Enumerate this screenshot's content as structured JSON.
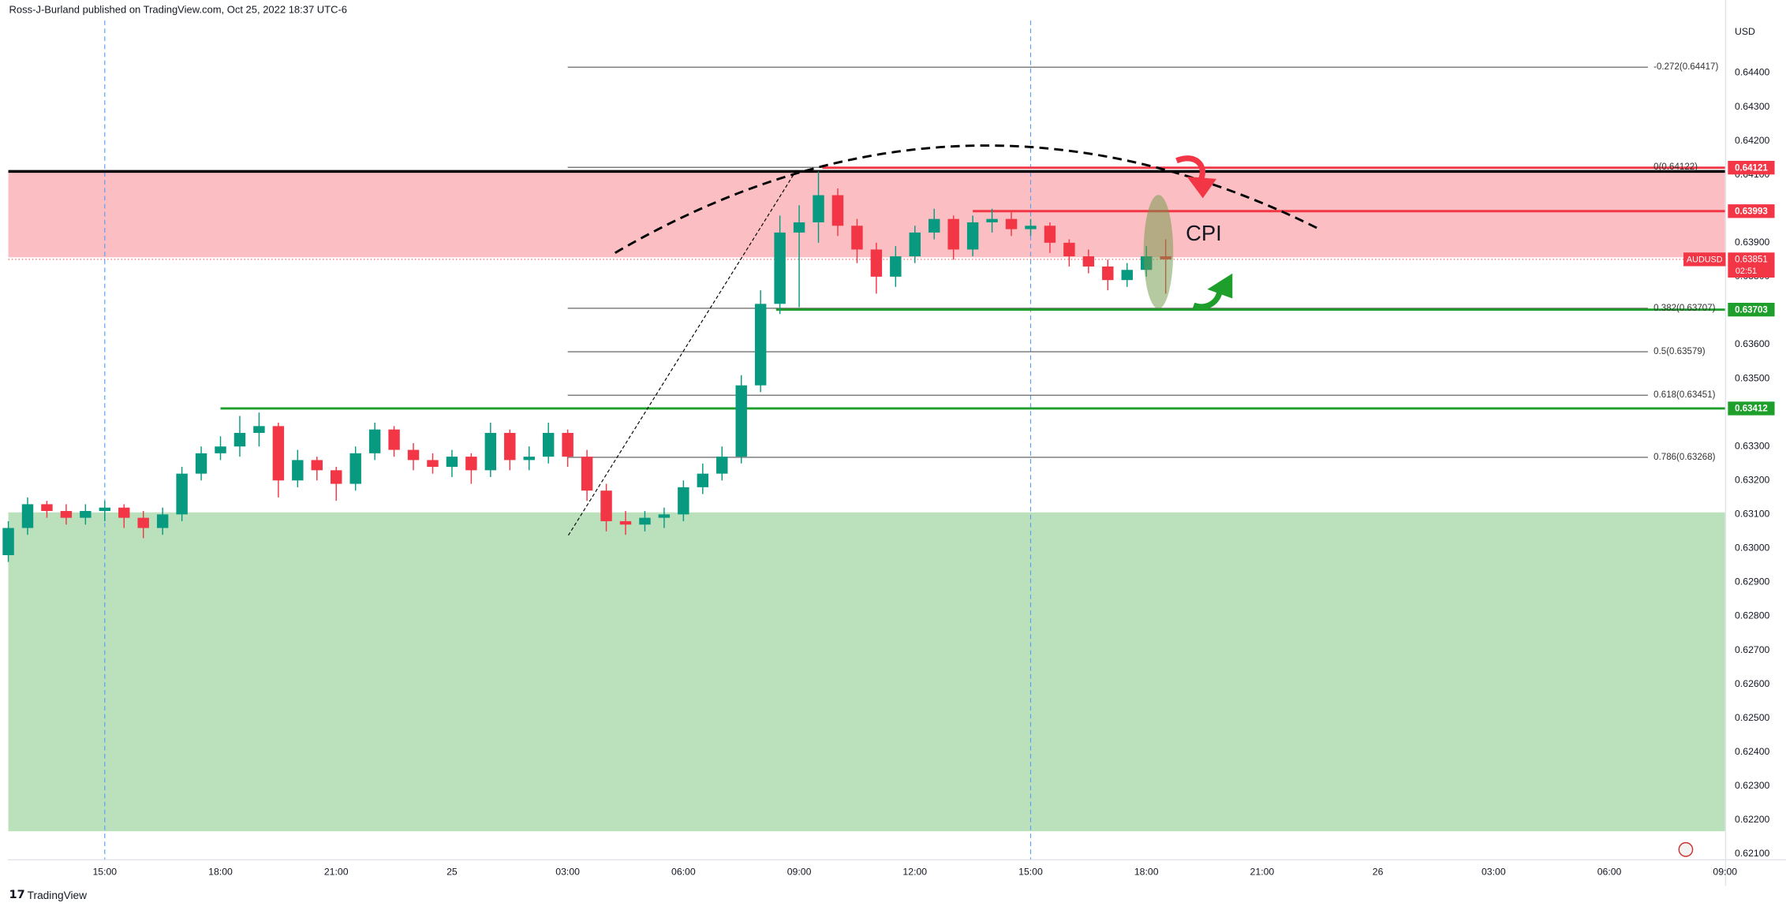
{
  "chart_data": {
    "type": "candlestick",
    "source": "Ross-J-Burland published on TradingView.com, Oct 25, 2022 18:37 UTC-6",
    "currency": "USD",
    "brand": "TradingView",
    "annotation": "CPI",
    "xlim": [
      12.5,
      57
    ],
    "ylim": [
      0.62083,
      0.64554
    ],
    "grid": false,
    "xticks": [
      {
        "value": 15,
        "label": "15:00"
      },
      {
        "value": 18,
        "label": "18:00"
      },
      {
        "value": 21,
        "label": "21:00"
      },
      {
        "value": 24,
        "label": "25"
      },
      {
        "value": 27,
        "label": "03:00"
      },
      {
        "value": 30,
        "label": "06:00"
      },
      {
        "value": 33,
        "label": "09:00"
      },
      {
        "value": 36,
        "label": "12:00"
      },
      {
        "value": 39,
        "label": "15:00"
      },
      {
        "value": 42,
        "label": "18:00"
      },
      {
        "value": 45,
        "label": "21:00"
      },
      {
        "value": 48,
        "label": "26"
      },
      {
        "value": 51,
        "label": "03:00"
      },
      {
        "value": 54,
        "label": "06:00"
      },
      {
        "value": 57,
        "label": "09:00"
      }
    ],
    "yticks": [
      {
        "value": 0.621,
        "label": "0.62100"
      },
      {
        "value": 0.622,
        "label": "0.62200"
      },
      {
        "value": 0.623,
        "label": "0.62300"
      },
      {
        "value": 0.624,
        "label": "0.62400"
      },
      {
        "value": 0.625,
        "label": "0.62500"
      },
      {
        "value": 0.626,
        "label": "0.62600"
      },
      {
        "value": 0.627,
        "label": "0.62700"
      },
      {
        "value": 0.628,
        "label": "0.62800"
      },
      {
        "value": 0.629,
        "label": "0.62900"
      },
      {
        "value": 0.63,
        "label": "0.63000"
      },
      {
        "value": 0.631,
        "label": "0.63100"
      },
      {
        "value": 0.632,
        "label": "0.63200"
      },
      {
        "value": 0.633,
        "label": "0.63300"
      },
      {
        "value": 0.634,
        "label": "0.63400"
      },
      {
        "value": 0.635,
        "label": "0.63500"
      },
      {
        "value": 0.636,
        "label": "0.63600"
      },
      {
        "value": 0.637,
        "label": "0.63700"
      },
      {
        "value": 0.638,
        "label": "0.63800"
      },
      {
        "value": 0.639,
        "label": "0.63900"
      },
      {
        "value": 0.64,
        "label": "0.64000"
      },
      {
        "value": 0.641,
        "label": "0.64100"
      },
      {
        "value": 0.642,
        "label": "0.64200"
      },
      {
        "value": 0.643,
        "label": "0.64300"
      },
      {
        "value": 0.644,
        "label": "0.64400"
      }
    ],
    "up_color": "#089981",
    "down_color": "#f23645",
    "session_lines": [
      15,
      39
    ],
    "zones": [
      {
        "color": "rgba(242,54,69,0.32)",
        "range": [
          0.63857,
          0.6411
        ]
      },
      {
        "color": "rgba(76,175,80,0.38)",
        "range": [
          0.62167,
          0.63106
        ]
      }
    ],
    "resistance": {
      "value": 0.6411,
      "color": "#000000"
    },
    "levels": [
      {
        "value": 0.64121,
        "start": 33.6,
        "color": "#f23645"
      },
      {
        "value": 0.63993,
        "start": 37.5,
        "color": "#f23645"
      },
      {
        "value": 0.63703,
        "start": 32.4,
        "color": "#1e9e2a"
      },
      {
        "value": 0.63412,
        "start": 18.0,
        "color": "#1e9e2a"
      }
    ],
    "fib_x": [
      27,
      55
    ],
    "fib": [
      {
        "value": 0.64417,
        "label": "-0.272(0.64417)"
      },
      {
        "value": 0.64122,
        "label": "0(0.64122)"
      },
      {
        "value": 0.63707,
        "label": "0.382(0.63707)"
      },
      {
        "value": 0.63579,
        "label": "0.5(0.63579)"
      },
      {
        "value": 0.63451,
        "label": "0.618(0.63451)"
      },
      {
        "value": 0.63268,
        "label": "0.786(0.63268)"
      }
    ],
    "last_price": {
      "symbol": "AUDUSD",
      "value": 0.63851,
      "countdown": "02:51",
      "color": "#f23645"
    },
    "x": [
      12.5,
      13,
      13.5,
      14,
      14.5,
      15,
      15.5,
      16,
      16.5,
      17,
      17.5,
      18,
      18.5,
      19,
      19.5,
      20,
      20.5,
      21,
      21.5,
      22,
      22.5,
      23,
      23.5,
      24,
      24.5,
      25,
      25.5,
      26,
      26.5,
      27,
      27.5,
      28,
      28.5,
      29,
      29.5,
      30,
      30.5,
      31,
      31.5,
      32,
      32.5,
      33,
      33.5,
      34,
      34.5,
      35,
      35.5,
      36,
      36.5,
      37,
      37.5,
      38,
      38.5,
      39,
      39.5,
      40,
      40.5,
      41,
      41.5,
      42,
      42.5
    ],
    "open": [
      0.6298,
      0.6306,
      0.6313,
      0.6311,
      0.6309,
      0.6311,
      0.6312,
      0.6309,
      0.6306,
      0.631,
      0.6322,
      0.6328,
      0.633,
      0.6334,
      0.6336,
      0.632,
      0.6326,
      0.6323,
      0.6319,
      0.6328,
      0.6335,
      0.6329,
      0.6326,
      0.6324,
      0.6327,
      0.6323,
      0.6334,
      0.6326,
      0.6327,
      0.6334,
      0.6327,
      0.6317,
      0.6308,
      0.6307,
      0.6309,
      0.631,
      0.6318,
      0.6322,
      0.6327,
      0.6348,
      0.6372,
      0.6393,
      0.6396,
      0.6404,
      0.6395,
      0.6388,
      0.638,
      0.6386,
      0.6393,
      0.6397,
      0.6388,
      0.6396,
      0.6397,
      0.6394,
      0.6395,
      0.639,
      0.6386,
      0.6383,
      0.6379,
      0.6382,
      0.6386
    ],
    "high": [
      0.6308,
      0.6315,
      0.6314,
      0.6313,
      0.6313,
      0.6314,
      0.6313,
      0.6311,
      0.6312,
      0.6324,
      0.633,
      0.6333,
      0.6339,
      0.634,
      0.6337,
      0.6329,
      0.6327,
      0.6324,
      0.633,
      0.6337,
      0.6336,
      0.6331,
      0.6328,
      0.6329,
      0.6328,
      0.6337,
      0.6335,
      0.633,
      0.6337,
      0.6335,
      0.6329,
      0.6319,
      0.6311,
      0.6311,
      0.6312,
      0.632,
      0.6325,
      0.633,
      0.6351,
      0.6376,
      0.6398,
      0.6401,
      0.6411,
      0.6406,
      0.6397,
      0.639,
      0.6389,
      0.6395,
      0.64,
      0.6398,
      0.6398,
      0.64,
      0.6399,
      0.6397,
      0.6396,
      0.6391,
      0.6388,
      0.6385,
      0.6384,
      0.6389,
      0.6391
    ],
    "low": [
      0.6296,
      0.6304,
      0.6309,
      0.6307,
      0.6307,
      0.6308,
      0.6306,
      0.6303,
      0.6304,
      0.6308,
      0.632,
      0.6326,
      0.6327,
      0.633,
      0.6315,
      0.6318,
      0.632,
      0.6314,
      0.6317,
      0.6326,
      0.6327,
      0.6323,
      0.6322,
      0.6321,
      0.6319,
      0.6321,
      0.6323,
      0.6323,
      0.6325,
      0.6324,
      0.6314,
      0.6305,
      0.6304,
      0.6305,
      0.6306,
      0.6308,
      0.6316,
      0.632,
      0.6325,
      0.6346,
      0.6369,
      0.6371,
      0.639,
      0.6392,
      0.6384,
      0.6375,
      0.6377,
      0.6384,
      0.6391,
      0.6385,
      0.6386,
      0.6393,
      0.6392,
      0.6392,
      0.6387,
      0.6383,
      0.6381,
      0.6376,
      0.6377,
      0.638,
      0.6375
    ],
    "close": [
      0.6306,
      0.6313,
      0.6311,
      0.6309,
      0.6311,
      0.6312,
      0.6309,
      0.6306,
      0.631,
      0.6322,
      0.6328,
      0.633,
      0.6334,
      0.6336,
      0.632,
      0.6326,
      0.6323,
      0.6319,
      0.6328,
      0.6335,
      0.6329,
      0.6326,
      0.6324,
      0.6327,
      0.6323,
      0.6334,
      0.6326,
      0.6327,
      0.6334,
      0.6327,
      0.6317,
      0.6308,
      0.6307,
      0.6309,
      0.631,
      0.6318,
      0.6322,
      0.6327,
      0.6348,
      0.6372,
      0.6393,
      0.6396,
      0.6404,
      0.6395,
      0.6388,
      0.638,
      0.6386,
      0.6393,
      0.6397,
      0.6388,
      0.6396,
      0.6397,
      0.6394,
      0.6395,
      0.639,
      0.6386,
      0.6383,
      0.6379,
      0.6382,
      0.6386,
      0.63851
    ]
  }
}
